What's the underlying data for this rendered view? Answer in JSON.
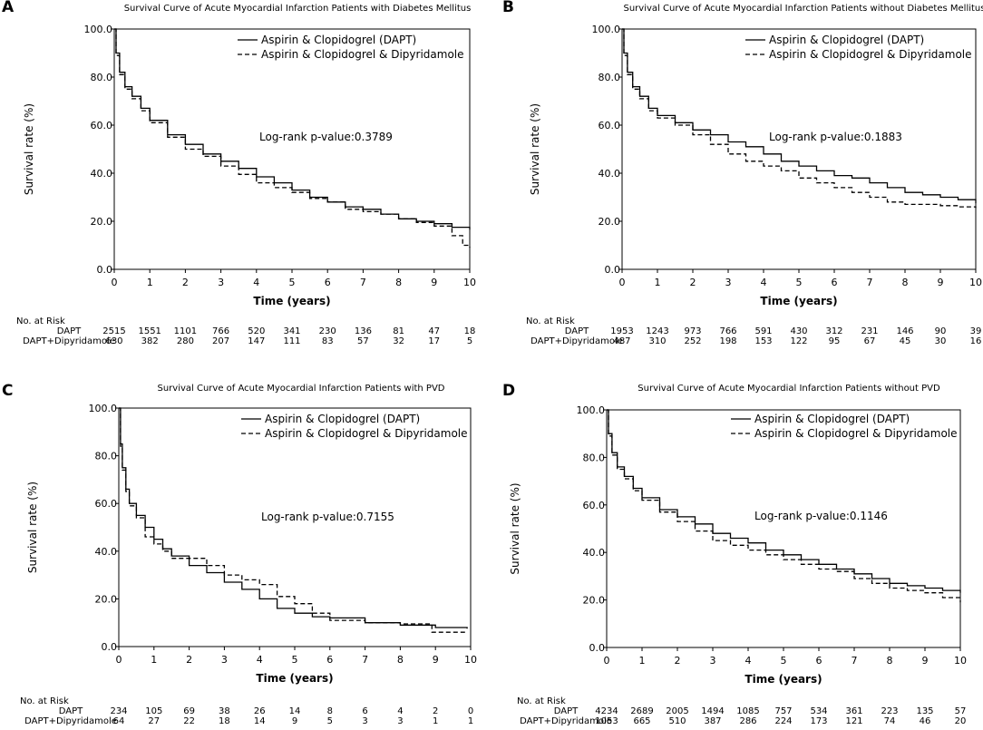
{
  "chart_data": [
    {
      "type": "line",
      "panel_letter": "A",
      "title": "Survival Curve of Acute Myocardial Infarction Patients with Diabetes Mellitus",
      "xlabel": "Time (years)",
      "ylabel": "Survival rate (%)",
      "xlim": [
        0,
        10
      ],
      "ylim": [
        0,
        100
      ],
      "x_ticks": [
        "0",
        "1",
        "2",
        "3",
        "4",
        "5",
        "6",
        "7",
        "8",
        "9",
        "10"
      ],
      "y_ticks": [
        "0.0",
        "20.0",
        "40.0",
        "60.0",
        "80.0",
        "100.0"
      ],
      "legend": [
        "Aspirin & Clopidogrel (DAPT)",
        "Aspirin & Clopidogrel & Dipyridamole"
      ],
      "legend_position": "top-right",
      "annotation": "Log-rank p-value:0.3789",
      "series": [
        {
          "name": "Aspirin & Clopidogrel (DAPT)",
          "style": "solid",
          "x": [
            0,
            0.05,
            0.15,
            0.3,
            0.5,
            0.75,
            1,
            1.5,
            2,
            2.5,
            3,
            3.5,
            4,
            4.5,
            5,
            5.5,
            6,
            6.5,
            7,
            7.5,
            8,
            8.5,
            9,
            9.5,
            10
          ],
          "y": [
            100,
            90,
            82,
            76,
            72,
            67,
            62,
            56,
            52,
            48,
            45,
            42,
            38.5,
            36,
            33,
            30,
            28,
            26,
            25,
            23,
            21,
            20,
            19,
            17.5,
            16.5
          ]
        },
        {
          "name": "Aspirin & Clopidogrel & Dipyridamole",
          "style": "dashed",
          "x": [
            0,
            0.05,
            0.15,
            0.3,
            0.5,
            0.75,
            1,
            1.5,
            2,
            2.5,
            3,
            3.5,
            4,
            4.5,
            5,
            5.5,
            6,
            6.5,
            7,
            7.5,
            8,
            8.5,
            9,
            9.5,
            9.8,
            10
          ],
          "y": [
            100,
            89,
            81,
            75,
            71,
            66,
            61,
            55,
            50,
            47,
            43,
            39.5,
            36,
            34,
            32,
            29.5,
            28,
            25,
            24,
            23,
            21,
            19.5,
            18,
            14,
            10,
            9
          ]
        }
      ],
      "risk_table": {
        "header": "No. at Risk",
        "rows": [
          {
            "label": "DAPT",
            "values": [
              "2515",
              "1551",
              "1101",
              "766",
              "520",
              "341",
              "230",
              "136",
              "81",
              "47",
              "18"
            ]
          },
          {
            "label": "DAPT+Dipyridamole",
            "values": [
              "630",
              "382",
              "280",
              "207",
              "147",
              "111",
              "83",
              "57",
              "32",
              "17",
              "5"
            ]
          }
        ]
      }
    },
    {
      "type": "line",
      "panel_letter": "B",
      "title": "Survival Curve of Acute Myocardial Infarction Patients without Diabetes Mellitus",
      "xlabel": "Time (years)",
      "ylabel": "Survival rate (%)",
      "xlim": [
        0,
        10
      ],
      "ylim": [
        0,
        100
      ],
      "x_ticks": [
        "0",
        "1",
        "2",
        "3",
        "4",
        "5",
        "6",
        "7",
        "8",
        "9",
        "10"
      ],
      "y_ticks": [
        "0.0",
        "20.0",
        "40.0",
        "60.0",
        "80.0",
        "100.0"
      ],
      "legend": [
        "Aspirin & Clopidogrel (DAPT)",
        "Aspirin & Clopidogrel & Dipyridamole"
      ],
      "legend_position": "top-right",
      "annotation": "Log-rank p-value:0.1883",
      "series": [
        {
          "name": "Aspirin & Clopidogrel (DAPT)",
          "style": "solid",
          "x": [
            0,
            0.05,
            0.15,
            0.3,
            0.5,
            0.75,
            1,
            1.5,
            2,
            2.5,
            3,
            3.5,
            4,
            4.5,
            5,
            5.5,
            6,
            6.5,
            7,
            7.5,
            8,
            8.5,
            9,
            9.5,
            10
          ],
          "y": [
            100,
            90,
            82,
            76,
            72,
            67,
            64,
            61,
            58,
            56,
            53,
            51,
            48,
            45,
            43,
            41,
            39,
            38,
            36,
            34,
            32,
            31,
            30,
            29,
            27.5
          ]
        },
        {
          "name": "Aspirin & Clopidogrel & Dipyridamole",
          "style": "dashed",
          "x": [
            0,
            0.05,
            0.15,
            0.3,
            0.5,
            0.75,
            1,
            1.5,
            2,
            2.5,
            3,
            3.5,
            4,
            4.5,
            5,
            5.5,
            6,
            6.5,
            7,
            7.5,
            8,
            8.5,
            9,
            9.5,
            10
          ],
          "y": [
            100,
            89,
            81,
            75,
            71,
            66,
            63,
            60,
            56,
            52,
            48,
            45,
            43,
            41,
            38,
            36,
            34,
            32,
            30,
            28,
            27,
            27,
            26.5,
            26,
            25.5
          ]
        }
      ],
      "risk_table": {
        "header": "No. at Risk",
        "rows": [
          {
            "label": "DAPT",
            "values": [
              "1953",
              "1243",
              "973",
              "766",
              "591",
              "430",
              "312",
              "231",
              "146",
              "90",
              "39"
            ]
          },
          {
            "label": "DAPT+Dipyridamole",
            "values": [
              "487",
              "310",
              "252",
              "198",
              "153",
              "122",
              "95",
              "67",
              "45",
              "30",
              "16"
            ]
          }
        ]
      }
    },
    {
      "type": "line",
      "panel_letter": "C",
      "title": "Survival Curve of Acute Myocardial Infarction Patients with PVD",
      "xlabel": "Time (years)",
      "ylabel": "Survival rate (%)",
      "xlim": [
        0,
        10
      ],
      "ylim": [
        0,
        100
      ],
      "x_ticks": [
        "0",
        "1",
        "2",
        "3",
        "4",
        "5",
        "6",
        "7",
        "8",
        "9",
        "10"
      ],
      "y_ticks": [
        "0.0",
        "20.0",
        "40.0",
        "60.0",
        "80.0",
        "100.0"
      ],
      "legend": [
        "Aspirin & Clopidogrel (DAPT)",
        "Aspirin & Clopidogrel & Dipyridamole"
      ],
      "legend_position": "top-right",
      "annotation": "Log-rank p-value:0.7155",
      "series": [
        {
          "name": "Aspirin & Clopidogrel (DAPT)",
          "style": "solid",
          "x": [
            0,
            0.05,
            0.1,
            0.2,
            0.3,
            0.5,
            0.75,
            1,
            1.25,
            1.5,
            2,
            2.5,
            3,
            3.5,
            4,
            4.5,
            5,
            5.5,
            6,
            7,
            8,
            9,
            9.9
          ],
          "y": [
            100,
            85,
            75,
            66,
            60,
            55,
            50,
            45,
            41,
            38,
            34,
            31,
            27,
            24,
            20,
            16,
            14,
            12.5,
            12,
            10,
            9,
            8,
            7.5
          ]
        },
        {
          "name": "Aspirin & Clopidogrel & Dipyridamole",
          "style": "dashed",
          "x": [
            0,
            0.05,
            0.1,
            0.2,
            0.3,
            0.5,
            0.75,
            1,
            1.25,
            1.5,
            2,
            2.5,
            3,
            3.5,
            4,
            4.5,
            5,
            5.5,
            6,
            7,
            8,
            8.9,
            9.9
          ],
          "y": [
            100,
            84,
            74,
            65,
            59,
            54,
            46,
            43,
            40,
            37,
            37,
            34,
            30,
            28,
            26,
            21,
            18,
            14,
            11,
            10,
            9.5,
            6,
            6
          ]
        }
      ],
      "risk_table": {
        "header": "No. at Risk",
        "rows": [
          {
            "label": "DAPT",
            "values": [
              "234",
              "105",
              "69",
              "38",
              "26",
              "14",
              "8",
              "6",
              "4",
              "2",
              "0"
            ]
          },
          {
            "label": "DAPT+Dipyridamole",
            "values": [
              "64",
              "27",
              "22",
              "18",
              "14",
              "9",
              "5",
              "3",
              "3",
              "1",
              "1"
            ]
          }
        ]
      }
    },
    {
      "type": "line",
      "panel_letter": "D",
      "title": "Survival Curve of Acute Myocardial Infarction Patients without PVD",
      "xlabel": "Time (years)",
      "ylabel": "Survival rate (%)",
      "xlim": [
        0,
        10
      ],
      "ylim": [
        0,
        100
      ],
      "x_ticks": [
        "0",
        "1",
        "2",
        "3",
        "4",
        "5",
        "6",
        "7",
        "8",
        "9",
        "10"
      ],
      "y_ticks": [
        "0.0",
        "20.0",
        "40.0",
        "60.0",
        "80.0",
        "100.0"
      ],
      "legend": [
        "Aspirin & Clopidogrel (DAPT)",
        "Aspirin & Clopidogrel & Dipyridamole"
      ],
      "legend_position": "top-right",
      "annotation": "Log-rank p-value:0.1146",
      "series": [
        {
          "name": "Aspirin & Clopidogrel (DAPT)",
          "style": "solid",
          "x": [
            0,
            0.05,
            0.15,
            0.3,
            0.5,
            0.75,
            1,
            1.5,
            2,
            2.5,
            3,
            3.5,
            4,
            4.5,
            5,
            5.5,
            6,
            6.5,
            7,
            7.5,
            8,
            8.5,
            9,
            9.5,
            10
          ],
          "y": [
            100,
            90,
            82,
            76,
            72,
            67,
            63,
            58,
            55,
            52,
            48,
            46,
            44,
            41,
            39,
            37,
            35,
            33,
            31,
            29,
            27,
            26,
            25,
            24,
            23
          ]
        },
        {
          "name": "Aspirin & Clopidogrel & Dipyridamole",
          "style": "dashed",
          "x": [
            0,
            0.05,
            0.15,
            0.3,
            0.5,
            0.75,
            1,
            1.5,
            2,
            2.5,
            3,
            3.5,
            4,
            4.5,
            5,
            5.5,
            6,
            6.5,
            7,
            7.5,
            8,
            8.5,
            9,
            9.5,
            10
          ],
          "y": [
            100,
            89,
            81,
            75,
            71,
            66,
            62,
            57,
            53,
            49,
            45,
            43,
            41,
            39,
            37,
            35,
            33,
            32,
            29,
            27,
            25,
            24,
            23,
            21,
            19
          ]
        }
      ],
      "risk_table": {
        "header": "No. at Risk",
        "rows": [
          {
            "label": "DAPT",
            "values": [
              "4234",
              "2689",
              "2005",
              "1494",
              "1085",
              "757",
              "534",
              "361",
              "223",
              "135",
              "57"
            ]
          },
          {
            "label": "DAPT+Dipyridamole",
            "values": [
              "1053",
              "665",
              "510",
              "387",
              "286",
              "224",
              "173",
              "121",
              "74",
              "46",
              "20"
            ]
          }
        ]
      }
    }
  ]
}
